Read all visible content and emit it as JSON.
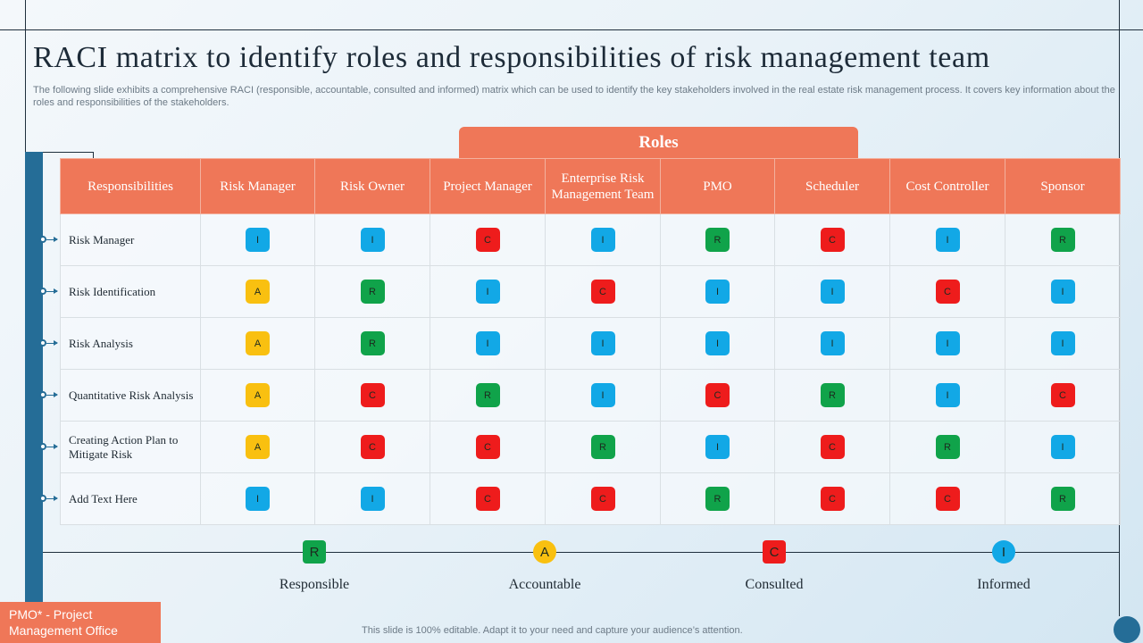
{
  "title": "RACI matrix to identify roles and responsibilities of risk management team",
  "subtitle": "The following slide exhibits a comprehensive RACI (responsible, accountable, consulted and informed) matrix which can be used to identify the key stakeholders involved in the real estate risk management process. It covers key information about the roles and responsibilities of the stakeholders.",
  "roles_banner": "Roles",
  "columns": [
    "Responsibilities",
    "Risk Manager",
    "Risk Owner",
    "Project Manager",
    "Enterprise Risk Management Team",
    "PMO",
    "Scheduler",
    "Cost Controller",
    "Sponsor"
  ],
  "rows": [
    {
      "label": "Risk Manager",
      "values": [
        "I",
        "I",
        "C",
        "I",
        "R",
        "C",
        "I",
        "R"
      ]
    },
    {
      "label": "Risk Identification",
      "values": [
        "A",
        "R",
        "I",
        "C",
        "I",
        "I",
        "C",
        "I"
      ]
    },
    {
      "label": "Risk Analysis",
      "values": [
        "A",
        "R",
        "I",
        "I",
        "I",
        "I",
        "I",
        "I"
      ]
    },
    {
      "label": "Quantitative Risk Analysis",
      "values": [
        "A",
        "C",
        "R",
        "I",
        "C",
        "R",
        "I",
        "C"
      ]
    },
    {
      "label": "Creating Action Plan to Mitigate Risk",
      "values": [
        "A",
        "C",
        "C",
        "R",
        "I",
        "C",
        "R",
        "I"
      ]
    },
    {
      "label": "Add Text Here",
      "values": [
        "I",
        "I",
        "C",
        "C",
        "R",
        "C",
        "C",
        "R"
      ]
    }
  ],
  "legend": [
    {
      "code": "R",
      "label": "Responsible",
      "color": "#10a34a",
      "shape": "square"
    },
    {
      "code": "A",
      "label": "Accountable",
      "color": "#f9c010",
      "shape": "circle"
    },
    {
      "code": "C",
      "label": "Consulted",
      "color": "#ee1c1c",
      "shape": "square"
    },
    {
      "code": "I",
      "label": "Informed",
      "color": "#12a8e6",
      "shape": "circle"
    }
  ],
  "footnote": "PMO* - Project Management Office",
  "footer": "This slide is 100% editable. Adapt it to your need and capture your audience’s attention.",
  "colors": {
    "accent": "#ef7758",
    "sidebar": "#256d97",
    "responsible": "#10a34a",
    "accountable": "#f9c010",
    "consulted": "#ee1c1c",
    "informed": "#12a8e6"
  }
}
